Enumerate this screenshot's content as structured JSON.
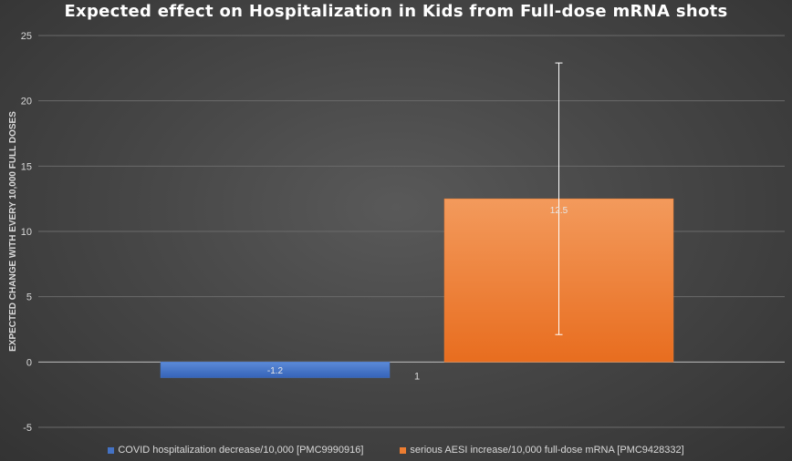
{
  "chart_data": {
    "type": "bar",
    "title": "Expected effect on Hospitalization in Kids from Full-dose mRNA shots",
    "xlabel": "",
    "ylabel": "EXPECTED CHANGE WITH EVERY 10,000 FULL DOSES",
    "ylim": [
      -5,
      25
    ],
    "yticks": [
      "-5",
      "0",
      "5",
      "10",
      "15",
      "20",
      "25"
    ],
    "categories": [
      "1"
    ],
    "grid": true,
    "legend_position": "bottom",
    "series": [
      {
        "name": "COVID hospitalization decrease/10,000 [PMC9990916]",
        "values": [
          -1.2
        ],
        "labels": [
          "-1.2"
        ],
        "color": "#4472c4"
      },
      {
        "name": "serious AESI increase/10,000 full-dose mRNA [PMC9428332]",
        "values": [
          12.5
        ],
        "labels": [
          "12.5"
        ],
        "error_range": [
          2.1,
          22.9
        ],
        "color": "#ed7d31"
      }
    ]
  }
}
